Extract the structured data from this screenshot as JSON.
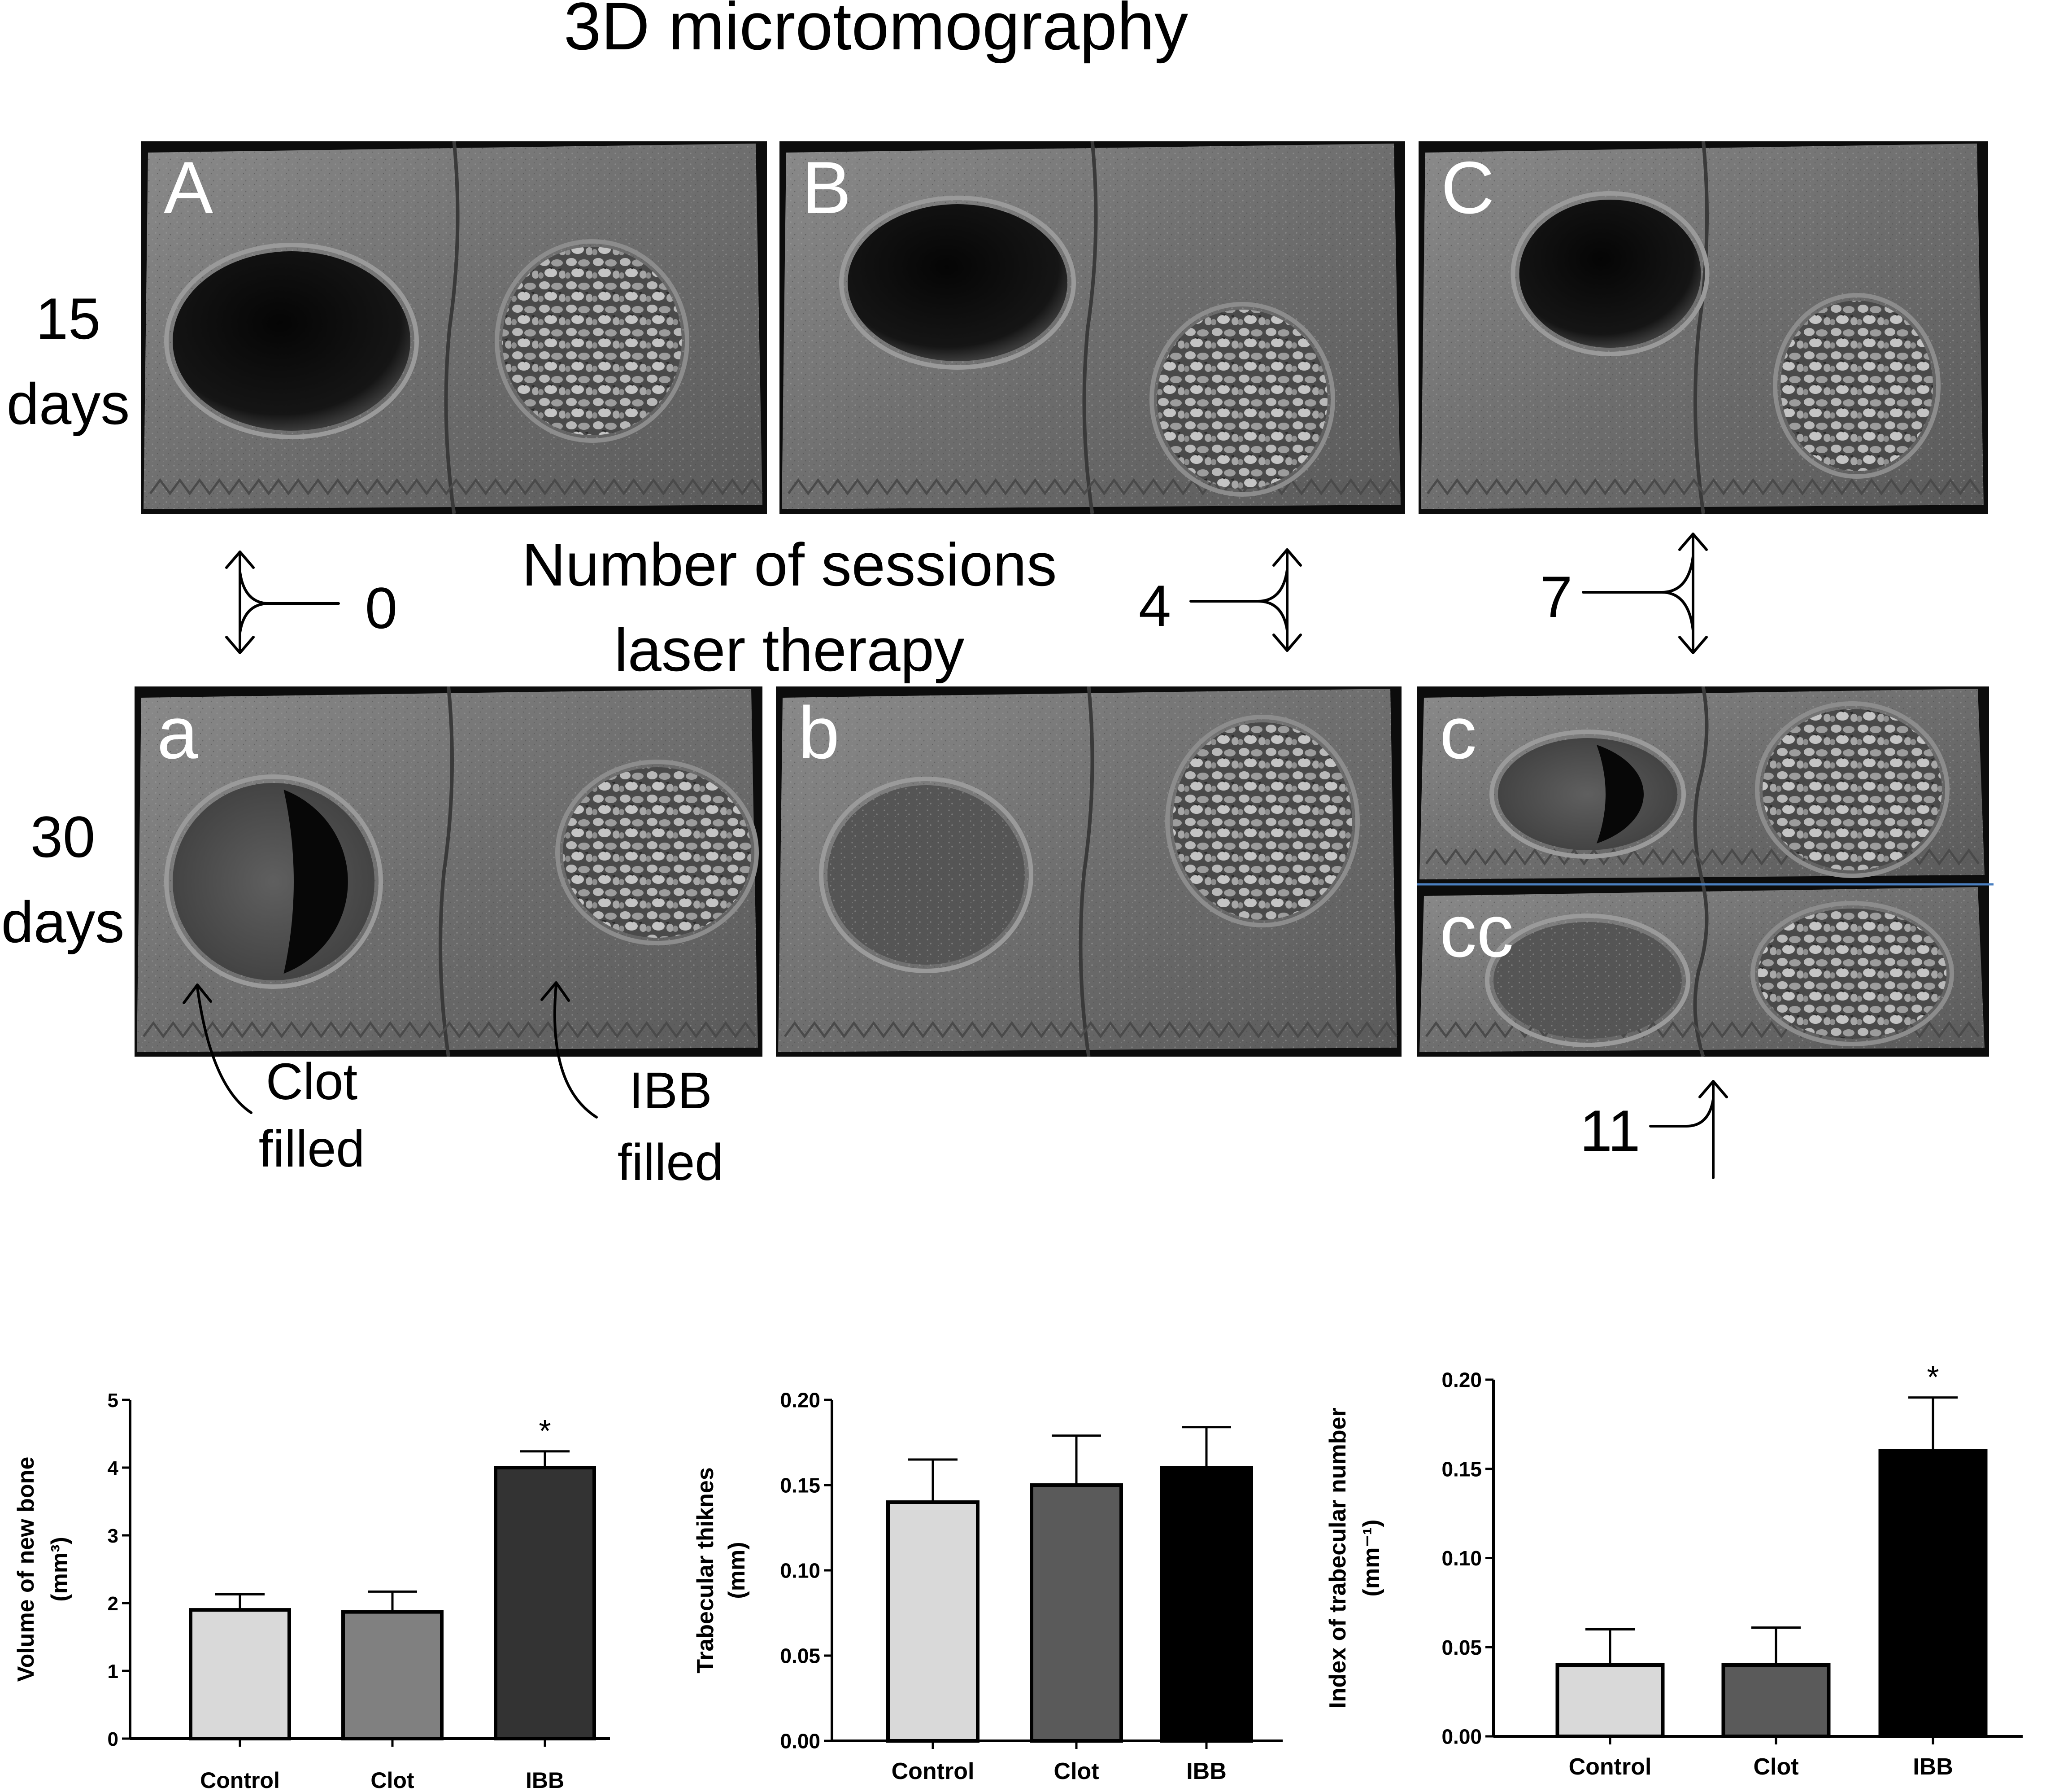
{
  "figure": {
    "title": "3D microtomography",
    "row_labels": [
      {
        "line1": "15",
        "line2": "days"
      },
      {
        "line1": "30",
        "line2": "days"
      }
    ],
    "panels": [
      {
        "label": "A",
        "left": "empty",
        "right": "granules"
      },
      {
        "label": "B",
        "left": "empty",
        "right": "granules"
      },
      {
        "label": "C",
        "left": "empty",
        "right": "granules"
      },
      {
        "label": "a",
        "left": "partial",
        "right": "granules"
      },
      {
        "label": "b",
        "left": "filled",
        "right": "granules"
      },
      {
        "label": "c",
        "left": "partial",
        "right": "granules"
      },
      {
        "label": "cc",
        "left": "filled",
        "right": "granules"
      }
    ],
    "sessions_label": {
      "line1": "Number of sessions",
      "line2": "laser therapy"
    },
    "session_counts": [
      "0",
      "4",
      "7",
      "11"
    ],
    "annotations": [
      {
        "line1": "Clot",
        "line2": "filled"
      },
      {
        "line1": "IBB",
        "line2": "filled"
      }
    ]
  },
  "chart_data": [
    {
      "type": "bar",
      "categories": [
        "Control",
        "Clot",
        "IBB"
      ],
      "values": [
        1.9,
        1.87,
        4.0
      ],
      "errors": [
        0.23,
        0.3,
        0.24
      ],
      "significance": [
        "",
        "",
        "*"
      ],
      "ylabel": "Volume of new bone",
      "yunit": "(mm³)",
      "ylim": [
        0,
        5
      ],
      "yticks": [
        "0",
        "1",
        "2",
        "3",
        "4",
        "5"
      ],
      "colors": [
        "#d9d9d9",
        "#808080",
        "#333333"
      ]
    },
    {
      "type": "bar",
      "categories": [
        "Control",
        "Clot",
        "IBB"
      ],
      "values": [
        0.14,
        0.15,
        0.16
      ],
      "errors": [
        0.025,
        0.029,
        0.024
      ],
      "significance": [
        "",
        "",
        ""
      ],
      "ylabel": "Trabecular thiknes",
      "yunit": "(mm)",
      "ylim": [
        0,
        0.2
      ],
      "yticks": [
        "0.00",
        "0.05",
        "0.10",
        "0.15",
        "0.20"
      ],
      "colors": [
        "#d9d9d9",
        "#5a5a5a",
        "#000000"
      ]
    },
    {
      "type": "bar",
      "categories": [
        "Control",
        "Clot",
        "IBB"
      ],
      "values": [
        0.04,
        0.04,
        0.16
      ],
      "errors": [
        0.02,
        0.021,
        0.03
      ],
      "significance": [
        "",
        "",
        "*"
      ],
      "ylabel": "Index of trabecular number",
      "yunit": "(mm⁻¹)",
      "ylim": [
        0,
        0.2
      ],
      "yticks": [
        "0.00",
        "0.05",
        "0.10",
        "0.15",
        "0.20"
      ],
      "colors": [
        "#d9d9d9",
        "#5a5a5a",
        "#000000"
      ]
    }
  ]
}
